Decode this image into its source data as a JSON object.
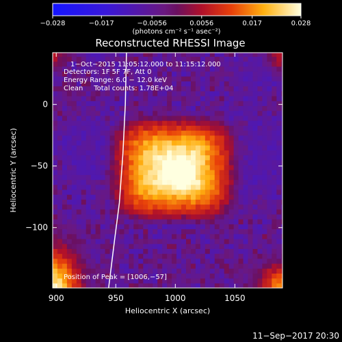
{
  "chart_data": {
    "type": "heatmap",
    "title": "Reconstructed RHESSI Image",
    "xlabel": "Heliocentric X (arcsec)",
    "ylabel": "Heliocentric Y (arcsec)",
    "xlim": [
      897,
      1090
    ],
    "ylim": [
      -149,
      42
    ],
    "xticks": [
      900,
      950,
      1000,
      1050
    ],
    "xtick_labels": [
      "900",
      "950",
      "1000",
      "1050"
    ],
    "yticks": [
      0,
      -50,
      -100
    ],
    "ytick_labels": [
      "0",
      "−50",
      "−100"
    ],
    "colorbar": {
      "min": -0.028,
      "max": 0.028,
      "ticks": [
        -0.028,
        -0.017,
        -0.0056,
        0.0056,
        0.017,
        0.028
      ],
      "tick_labels": [
        "−0.028",
        "−0.017",
        "−0.0056",
        "0.0056",
        "0.017",
        "0.028"
      ],
      "unit_label": "(photons cm⁻² s⁻¹ asec⁻²)"
    },
    "annotations": [
      "1−Oct−2015 11:05:12.000 to 11:15:12.000",
      "Detectors: 1F 5F 7F, Att 0",
      "Energy Range: 6.0 − 12.0 keV",
      "Clean     Total counts: 1.78E+04"
    ],
    "peak_label": "Position of Peak = [1006,−57]",
    "peak": {
      "x": 1006,
      "y": -57,
      "value": 0.028
    },
    "source_extent": {
      "x": [
        955,
        1042
      ],
      "y": [
        -87,
        -17
      ]
    },
    "limb_curve": [
      [
        959,
        42
      ],
      [
        958,
        0
      ],
      [
        956,
        -40
      ],
      [
        953,
        -80
      ],
      [
        949,
        -110
      ],
      [
        944,
        -149
      ]
    ],
    "grid": false
  },
  "footer": {
    "timestamp": "11−Sep−2017 20:30"
  }
}
